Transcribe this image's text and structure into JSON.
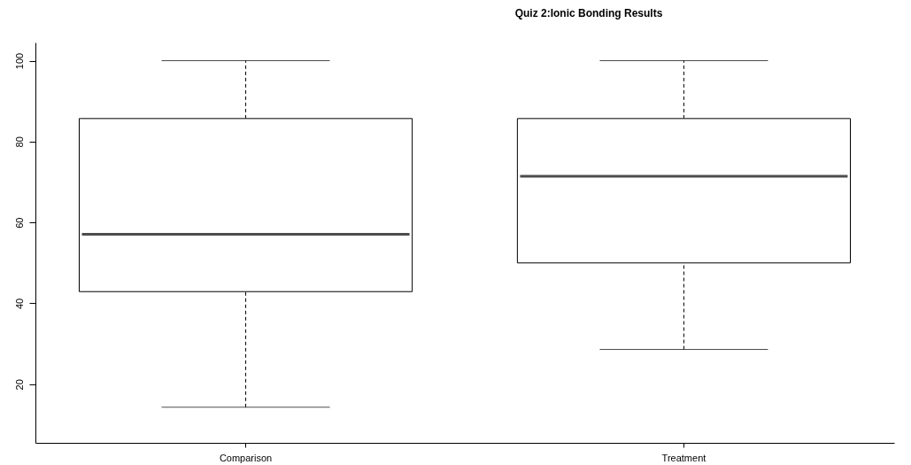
{
  "chart_data": {
    "type": "box",
    "title": "Quiz 2:Ionic Bonding Results",
    "categories": [
      "Comparison",
      "Treatment"
    ],
    "boxes": [
      {
        "low": 14.3,
        "q1": 42.9,
        "median": 57.1,
        "q3": 85.7,
        "high": 100
      },
      {
        "low": 28.6,
        "q1": 50,
        "median": 71.4,
        "q3": 85.7,
        "high": 100
      }
    ],
    "ylim": [
      5.5,
      104.5
    ],
    "yticks": [
      20,
      40,
      60,
      80,
      100
    ],
    "grid": false
  }
}
